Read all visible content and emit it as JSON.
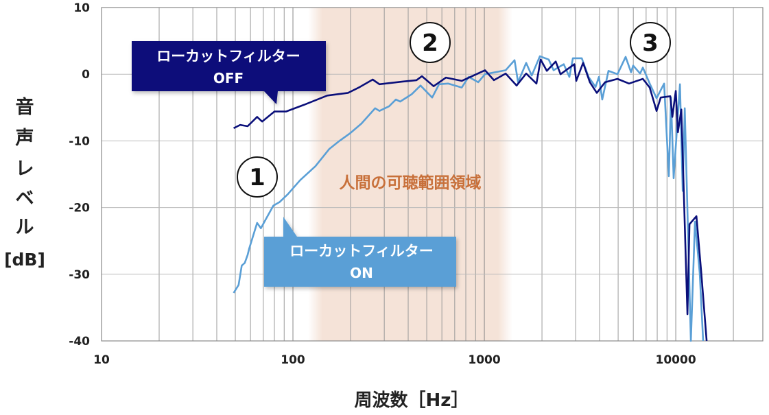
{
  "chart_data": {
    "type": "line",
    "xscale": "log",
    "xlim": [
      10,
      28500
    ],
    "ylim": [
      -40,
      10
    ],
    "grid": true,
    "xlabel": "周波数［Hz］",
    "ylabel": "音声レベル[dB]",
    "ylabel_chars": [
      "音",
      "声",
      "レ",
      "ベ",
      "ル",
      "[dB]"
    ],
    "x_ticks": [
      {
        "v": 10,
        "label": "10"
      },
      {
        "v": 100,
        "label": "100"
      },
      {
        "v": 1000,
        "label": "1000"
      },
      {
        "v": 10000,
        "label": "10000"
      }
    ],
    "y_ticks": [
      {
        "v": 10,
        "label": "10"
      },
      {
        "v": 0,
        "label": "0"
      },
      {
        "v": -10,
        "label": "-10"
      },
      {
        "v": -20,
        "label": "-20"
      },
      {
        "v": -30,
        "label": "-30"
      },
      {
        "v": -40,
        "label": "-40"
      }
    ],
    "shaded_region": {
      "from": 120,
      "to": 1400,
      "label": "人間の可聴範囲領域",
      "color": "#f5e3d8",
      "label_color": "#c8703a"
    },
    "series": [
      {
        "name": "ローカットフィルター OFF",
        "color": "#0a0f7a",
        "points": [
          [
            49,
            -8.1
          ],
          [
            53,
            -7.6
          ],
          [
            58,
            -7.8
          ],
          [
            65,
            -6.4
          ],
          [
            69,
            -7.1
          ],
          [
            80,
            -5.6
          ],
          [
            92,
            -5.6
          ],
          [
            114,
            -4.6
          ],
          [
            151,
            -3.2
          ],
          [
            194,
            -2.8
          ],
          [
            221,
            -2.0
          ],
          [
            261,
            -0.8
          ],
          [
            283,
            -1.5
          ],
          [
            374,
            -1.1
          ],
          [
            442,
            -0.9
          ],
          [
            472,
            -0.3
          ],
          [
            543,
            -1.8
          ],
          [
            630,
            -0.5
          ],
          [
            762,
            -1.0
          ],
          [
            1008,
            0.6
          ],
          [
            1122,
            -0.9
          ],
          [
            1292,
            0.1
          ],
          [
            1474,
            -1.7
          ],
          [
            1654,
            0.1
          ],
          [
            1872,
            -1.4
          ],
          [
            1968,
            2.2
          ],
          [
            2120,
            0.5
          ],
          [
            2360,
            1.9
          ],
          [
            2500,
            0
          ],
          [
            2950,
            1.5
          ],
          [
            3020,
            -1.0
          ],
          [
            3280,
            1.7
          ],
          [
            3560,
            -1.2
          ],
          [
            3870,
            -2.8
          ],
          [
            4270,
            -1.2
          ],
          [
            4960,
            -0.7
          ],
          [
            5700,
            -1.4
          ],
          [
            6730,
            -0.7
          ],
          [
            7310,
            -2.0
          ],
          [
            7940,
            -5.5
          ],
          [
            8340,
            -3.5
          ],
          [
            9360,
            -3.3
          ],
          [
            9600,
            -6.4
          ],
          [
            10000,
            -2.5
          ],
          [
            10260,
            -8.7
          ],
          [
            10690,
            -5.3
          ],
          [
            11510,
            -36
          ],
          [
            11800,
            -22.5
          ],
          [
            12820,
            -21.3
          ],
          [
            13580,
            -29.7
          ],
          [
            14500,
            -40
          ]
        ]
      },
      {
        "name": "ローカットフィルター ON",
        "color": "#5a9fd6",
        "points": [
          [
            49,
            -32.8
          ],
          [
            52,
            -31.6
          ],
          [
            54,
            -28.7
          ],
          [
            56,
            -28.3
          ],
          [
            58,
            -27.1
          ],
          [
            59,
            -26.2
          ],
          [
            65,
            -22.3
          ],
          [
            68,
            -23.1
          ],
          [
            72,
            -21.8
          ],
          [
            79,
            -19.7
          ],
          [
            85,
            -19.2
          ],
          [
            94,
            -18.0
          ],
          [
            109,
            -15.9
          ],
          [
            131,
            -13.8
          ],
          [
            155,
            -11.2
          ],
          [
            175,
            -10.0
          ],
          [
            198,
            -8.9
          ],
          [
            228,
            -7.4
          ],
          [
            269,
            -5.1
          ],
          [
            283,
            -5.5
          ],
          [
            318,
            -4.8
          ],
          [
            345,
            -3.8
          ],
          [
            363,
            -4.1
          ],
          [
            417,
            -3.0
          ],
          [
            464,
            -1.7
          ],
          [
            534,
            -3.5
          ],
          [
            580,
            -1.5
          ],
          [
            646,
            -1.4
          ],
          [
            762,
            -2.0
          ],
          [
            828,
            -0.4
          ],
          [
            929,
            -1.2
          ],
          [
            1008,
            0
          ],
          [
            1292,
            0.6
          ],
          [
            1438,
            2.1
          ],
          [
            1500,
            -1.2
          ],
          [
            1654,
            1.7
          ],
          [
            1768,
            -0.2
          ],
          [
            1950,
            2.7
          ],
          [
            2170,
            2.2
          ],
          [
            2300,
            0.6
          ],
          [
            2600,
            1.5
          ],
          [
            2780,
            -0.4
          ],
          [
            2900,
            2.4
          ],
          [
            3230,
            2.4
          ],
          [
            3500,
            -0.4
          ],
          [
            3810,
            -1.9
          ],
          [
            3970,
            -0.4
          ],
          [
            4130,
            -3.8
          ],
          [
            4450,
            0.5
          ],
          [
            4960,
            0
          ],
          [
            5470,
            2.6
          ],
          [
            5840,
            0.3
          ],
          [
            5990,
            1.3
          ],
          [
            6510,
            0.1
          ],
          [
            6730,
            1.0
          ],
          [
            7310,
            -1.4
          ],
          [
            7940,
            -3.6
          ],
          [
            8690,
            -1.4
          ],
          [
            9200,
            -15.3
          ],
          [
            9440,
            -3.5
          ],
          [
            9750,
            -15.6
          ],
          [
            10520,
            -1.5
          ],
          [
            10870,
            -17.5
          ],
          [
            11140,
            -5.1
          ],
          [
            11990,
            -40
          ],
          [
            12600,
            -22.1
          ],
          [
            13340,
            -29.8
          ],
          [
            13900,
            -40
          ]
        ]
      }
    ],
    "annotations": {
      "off_callout": {
        "line1": "ローカットフィルター",
        "line2": "OFF",
        "color": "#0a0f7a"
      },
      "on_callout": {
        "line1": "ローカットフィルター",
        "line2": "ON",
        "color": "#5a9fd6"
      },
      "markers": [
        "1",
        "2",
        "3"
      ]
    }
  }
}
